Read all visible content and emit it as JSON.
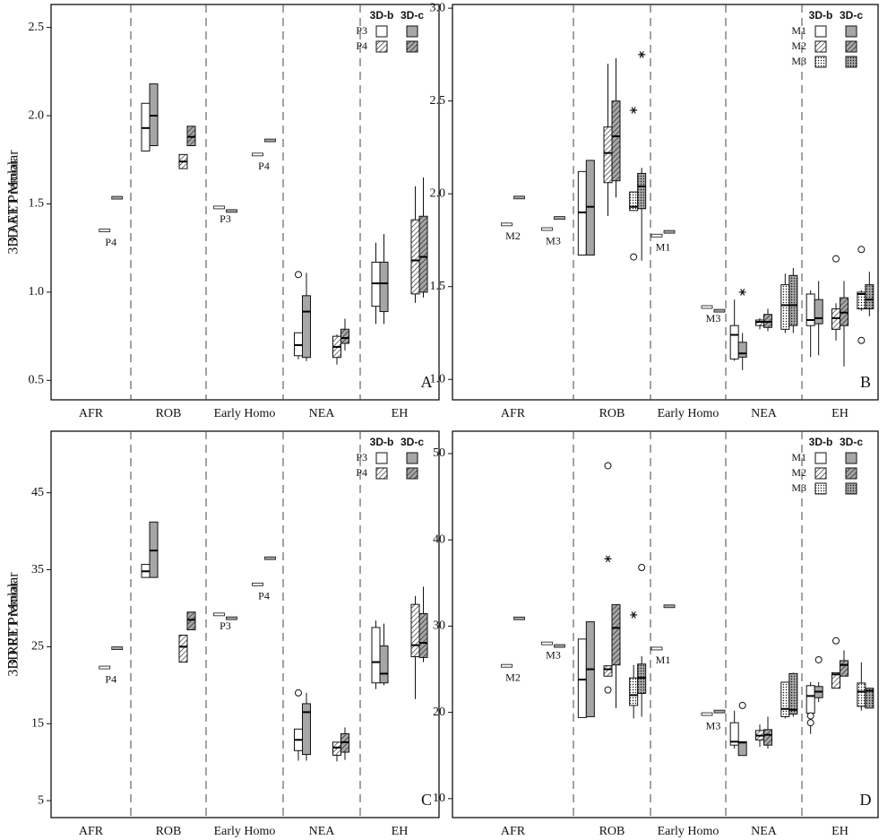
{
  "chart_data": [
    {
      "type": "box",
      "ylabel": "3D AET Premolar",
      "panel": "A",
      "categories": [
        "AFR",
        "ROB",
        "Early Homo",
        "NEA",
        "EH"
      ],
      "methods": [
        "3D-b",
        "3D-c"
      ],
      "colors": [
        "#ffffff",
        "#a6a6a6"
      ],
      "ylim": [
        0.39,
        2.63
      ],
      "yticks": [
        0.5,
        {
          "value": 1,
          "label": "1.0"
        },
        1.5,
        {
          "value": 2,
          "label": "2.0"
        },
        2.5
      ],
      "series": [
        {
          "name": "P3",
          "pattern": "none",
          "data": [
            [
              null,
              {
                "q1": 1.8,
                "median": 1.93,
                "q3": 2.07
              },
              {
                "median": 1.48,
                "label": "P3"
              },
              {
                "low": 0.62,
                "q1": 0.64,
                "median": 0.7,
                "q3": 0.77,
                "outliers": [
                  1.1
                ]
              },
              {
                "low": 0.82,
                "q1": 0.92,
                "median": 1.05,
                "q3": 1.17,
                "high": 1.28
              }
            ],
            [
              null,
              {
                "q1": 1.83,
                "median": 2.0,
                "q3": 2.18
              },
              {
                "median": 1.46
              },
              {
                "low": 0.61,
                "q1": 0.63,
                "median": 0.89,
                "q3": 0.98,
                "high": 1.11
              },
              {
                "low": 0.82,
                "q1": 0.89,
                "median": 1.05,
                "q3": 1.17,
                "high": 1.33
              }
            ]
          ]
        },
        {
          "name": "P4",
          "pattern": "hatch",
          "data": [
            [
              {
                "median": 1.35,
                "label": "P4"
              },
              {
                "q1": 1.7,
                "median": 1.74,
                "q3": 1.78
              },
              {
                "median": 1.78,
                "label": "P4"
              },
              {
                "low": 0.59,
                "q1": 0.63,
                "median": 0.69,
                "q3": 0.75,
                "high": 0.76
              },
              {
                "low": 0.94,
                "q1": 0.99,
                "median": 1.18,
                "q3": 1.41,
                "high": 1.6
              }
            ],
            [
              {
                "median": 1.535
              },
              {
                "q1": 1.83,
                "median": 1.88,
                "q3": 1.94
              },
              {
                "median": 1.86
              },
              {
                "low": 0.67,
                "q1": 0.71,
                "median": 0.74,
                "q3": 0.79,
                "high": 0.85
              },
              {
                "low": 0.97,
                "q1": 1.0,
                "median": 1.2,
                "q3": 1.43,
                "high": 1.65
              }
            ]
          ]
        }
      ]
    },
    {
      "type": "box",
      "ylabel": "3D AET Molar",
      "panel": "B",
      "categories": [
        "AFR",
        "ROB",
        "Early Homo",
        "NEA",
        "EH"
      ],
      "methods": [
        "3D-b",
        "3D-c"
      ],
      "colors": [
        "#ffffff",
        "#a6a6a6"
      ],
      "ylim": [
        0.89,
        3.02
      ],
      "yticks": [
        {
          "value": 1,
          "label": "1.0"
        },
        1.5,
        {
          "value": 2,
          "label": "2.0"
        },
        2.5,
        {
          "value": 3,
          "label": "3.0"
        }
      ],
      "series": [
        {
          "name": "M1",
          "pattern": "none",
          "data": [
            [
              null,
              {
                "q1": 1.67,
                "median": 1.9,
                "q3": 2.12
              },
              {
                "median": 1.775,
                "label": "M1"
              },
              {
                "low": 1.1,
                "q1": 1.11,
                "median": 1.24,
                "q3": 1.29,
                "high": 1.43
              },
              {
                "low": 1.12,
                "q1": 1.29,
                "median": 1.32,
                "q3": 1.46,
                "high": 1.48
              }
            ],
            [
              null,
              {
                "q1": 1.67,
                "median": 1.93,
                "q3": 2.18
              },
              {
                "median": 1.795
              },
              {
                "low": 1.05,
                "q1": 1.12,
                "median": 1.14,
                "q3": 1.2,
                "high": 1.25,
                "extremes": [
                  1.47
                ]
              },
              {
                "low": 1.13,
                "q1": 1.3,
                "median": 1.33,
                "q3": 1.43,
                "high": 1.53
              }
            ]
          ]
        },
        {
          "name": "M2",
          "pattern": "hatch",
          "data": [
            [
              {
                "median": 1.835,
                "label": "M2"
              },
              {
                "low": 1.88,
                "q1": 2.06,
                "median": 2.22,
                "q3": 2.36,
                "high": 2.7
              },
              null,
              {
                "low": 1.27,
                "q1": 1.29,
                "median": 1.31,
                "q3": 1.32,
                "high": 1.33
              },
              {
                "low": 1.21,
                "q1": 1.27,
                "median": 1.33,
                "q3": 1.38,
                "high": 1.41,
                "outliers": [
                  1.65
                ]
              }
            ],
            [
              {
                "median": 1.98
              },
              {
                "low": 1.98,
                "q1": 2.07,
                "median": 2.31,
                "q3": 2.5,
                "high": 2.73
              },
              null,
              {
                "low": 1.26,
                "q1": 1.28,
                "median": 1.31,
                "q3": 1.35,
                "high": 1.38
              },
              {
                "low": 1.07,
                "q1": 1.29,
                "median": 1.36,
                "q3": 1.44,
                "high": 1.53
              }
            ]
          ]
        },
        {
          "name": "M3",
          "pattern": "dots",
          "data": [
            [
              {
                "median": 1.81,
                "label": "M3"
              },
              {
                "q1": 1.91,
                "median": 1.93,
                "q3": 2.01,
                "outliers": [
                  1.66
                ],
                "extremes": [
                  2.45
                ]
              },
              {
                "median": 1.39,
                "label": "M3"
              },
              {
                "low": 1.25,
                "q1": 1.27,
                "median": 1.4,
                "q3": 1.51,
                "high": 1.57
              },
              {
                "low": 1.37,
                "q1": 1.38,
                "median": 1.46,
                "q3": 1.47,
                "high": 1.48,
                "outliers": [
                  1.7,
                  1.21
                ]
              }
            ],
            [
              {
                "median": 1.87
              },
              {
                "low": 1.64,
                "q1": 1.92,
                "median": 2.04,
                "q3": 2.11,
                "high": 2.14,
                "extremes": [
                  2.75
                ]
              },
              {
                "median": 1.37
              },
              {
                "low": 1.25,
                "q1": 1.29,
                "median": 1.4,
                "q3": 1.56,
                "high": 1.6
              },
              {
                "low": 1.34,
                "q1": 1.38,
                "median": 1.43,
                "q3": 1.51,
                "high": 1.58
              }
            ]
          ]
        }
      ]
    },
    {
      "type": "box",
      "ylabel": "3D RET Premolar",
      "panel": "C",
      "categories": [
        "AFR",
        "ROB",
        "Early Homo",
        "NEA",
        "EH"
      ],
      "methods": [
        "3D-b",
        "3D-c"
      ],
      "colors": [
        "#ffffff",
        "#a6a6a6"
      ],
      "ylim": [
        2.8,
        53
      ],
      "yticks": [
        5,
        15,
        25,
        35,
        45
      ],
      "series": [
        {
          "name": "P3",
          "pattern": "none",
          "data": [
            [
              null,
              {
                "q1": 34.0,
                "median": 34.8,
                "q3": 35.7
              },
              {
                "median": 29.2,
                "label": "P3"
              },
              {
                "low": 10.2,
                "q1": 11.5,
                "median": 12.9,
                "q3": 14.3,
                "outliers": [
                  19.0
                ]
              },
              {
                "low": 19.5,
                "q1": 20.3,
                "median": 23.0,
                "q3": 27.5,
                "high": 28.4
              }
            ],
            [
              null,
              {
                "q1": 34.0,
                "median": 37.5,
                "q3": 41.2
              },
              {
                "median": 28.7
              },
              {
                "low": 10.2,
                "q1": 11.0,
                "median": 16.5,
                "q3": 17.6,
                "high": 19.0
              },
              {
                "low": 20.0,
                "q1": 20.3,
                "median": 21.5,
                "q3": 25.1,
                "high": 28.0
              }
            ]
          ]
        },
        {
          "name": "P4",
          "pattern": "hatch",
          "data": [
            [
              {
                "median": 22.3,
                "label": "P4"
              },
              {
                "q1": 23.0,
                "median": 25.0,
                "q3": 26.5
              },
              {
                "median": 33.1,
                "label": "P4"
              },
              {
                "low": 10.1,
                "q1": 10.9,
                "median": 11.9,
                "q3": 12.6
              },
              {
                "low": 18.2,
                "q1": 23.7,
                "median": 25.2,
                "q3": 30.5,
                "high": 31.6
              }
            ],
            [
              {
                "median": 24.8
              },
              {
                "q1": 27.2,
                "median": 28.5,
                "q3": 29.5
              },
              {
                "median": 36.5
              },
              {
                "low": 10.3,
                "q1": 11.3,
                "median": 12.6,
                "q3": 13.7,
                "high": 14.5
              },
              {
                "low": 23.0,
                "q1": 23.6,
                "median": 25.5,
                "q3": 29.3,
                "high": 32.8
              }
            ]
          ]
        }
      ]
    },
    {
      "type": "box",
      "ylabel": "3D RET Molar",
      "panel": "D",
      "categories": [
        "AFR",
        "ROB",
        "Early Homo",
        "NEA",
        "EH"
      ],
      "methods": [
        "3D-b",
        "3D-c"
      ],
      "colors": [
        "#ffffff",
        "#a6a6a6"
      ],
      "ylim": [
        7.8,
        52.6
      ],
      "yticks": [
        10,
        20,
        30,
        40,
        50
      ],
      "series": [
        {
          "name": "M1",
          "pattern": "none",
          "data": [
            [
              null,
              {
                "q1": 19.4,
                "median": 23.8,
                "q3": 28.5
              },
              {
                "median": 27.4,
                "label": "M1"
              },
              {
                "low": 15.8,
                "q1": 16.2,
                "median": 16.6,
                "q3": 18.8,
                "high": 20.2
              },
              {
                "low": 17.5,
                "q1": 19.9,
                "median": 21.9,
                "q3": 23.1,
                "high": 23.5,
                "outliers": [
                  18.8,
                  19.6
                ]
              }
            ],
            [
              null,
              {
                "q1": 19.5,
                "median": 25.0,
                "q3": 30.5
              },
              {
                "median": 32.3
              },
              {
                "q1": 15.0,
                "median": 16.5,
                "q3": 16.6,
                "outliers": [
                  20.8
                ]
              },
              {
                "low": 21.2,
                "q1": 21.7,
                "median": 22.4,
                "q3": 23.0,
                "high": 23.5,
                "outliers": [
                  26.1
                ]
              }
            ]
          ]
        },
        {
          "name": "M2",
          "pattern": "hatch",
          "data": [
            [
              {
                "median": 25.4,
                "label": "M2"
              },
              {
                "q1": 24.2,
                "median": 25.0,
                "q3": 25.4,
                "outliers": [
                  22.6,
                  48.6
                ],
                "extremes": [
                  37.8
                ]
              },
              null,
              {
                "low": 16.0,
                "q1": 16.8,
                "median": 17.3,
                "q3": 17.9,
                "high": 18.6
              },
              {
                "q1": 22.8,
                "median": 24.4,
                "q3": 24.6,
                "outliers": [
                  28.3
                ]
              }
            ],
            [
              {
                "median": 30.9
              },
              {
                "low": 20.5,
                "q1": 25.5,
                "median": 29.8,
                "q3": 32.5
              },
              null,
              {
                "low": 15.8,
                "q1": 16.2,
                "median": 17.4,
                "q3": 18.0,
                "high": 19.5
              },
              {
                "q1": 24.2,
                "median": 25.5,
                "q3": 26.0,
                "high": 27.2
              }
            ]
          ]
        },
        {
          "name": "M3",
          "pattern": "dots",
          "data": [
            [
              {
                "median": 28.0,
                "label": "M3"
              },
              {
                "low": 19.3,
                "q1": 20.8,
                "median": 22.0,
                "q3": 24.0,
                "high": 25.5,
                "extremes": [
                  31.3
                ]
              },
              {
                "median": 19.8,
                "label": "M3"
              },
              {
                "low": 19.3,
                "q1": 19.5,
                "median": 20.4,
                "q3": 23.5
              },
              {
                "low": 20.2,
                "q1": 20.7,
                "median": 22.4,
                "q3": 23.4,
                "high": 25.8
              }
            ],
            [
              {
                "median": 27.7
              },
              {
                "low": 19.5,
                "q1": 22.2,
                "median": 24.0,
                "q3": 25.6,
                "high": 26.5,
                "outliers": [
                  36.8
                ]
              },
              {
                "median": 20.1
              },
              {
                "low": 19.5,
                "q1": 19.8,
                "median": 20.3,
                "q3": 24.5,
                "high": 24.6
              },
              {
                "q1": 20.5,
                "median": 22.5,
                "q3": 22.8
              }
            ]
          ]
        }
      ]
    }
  ]
}
